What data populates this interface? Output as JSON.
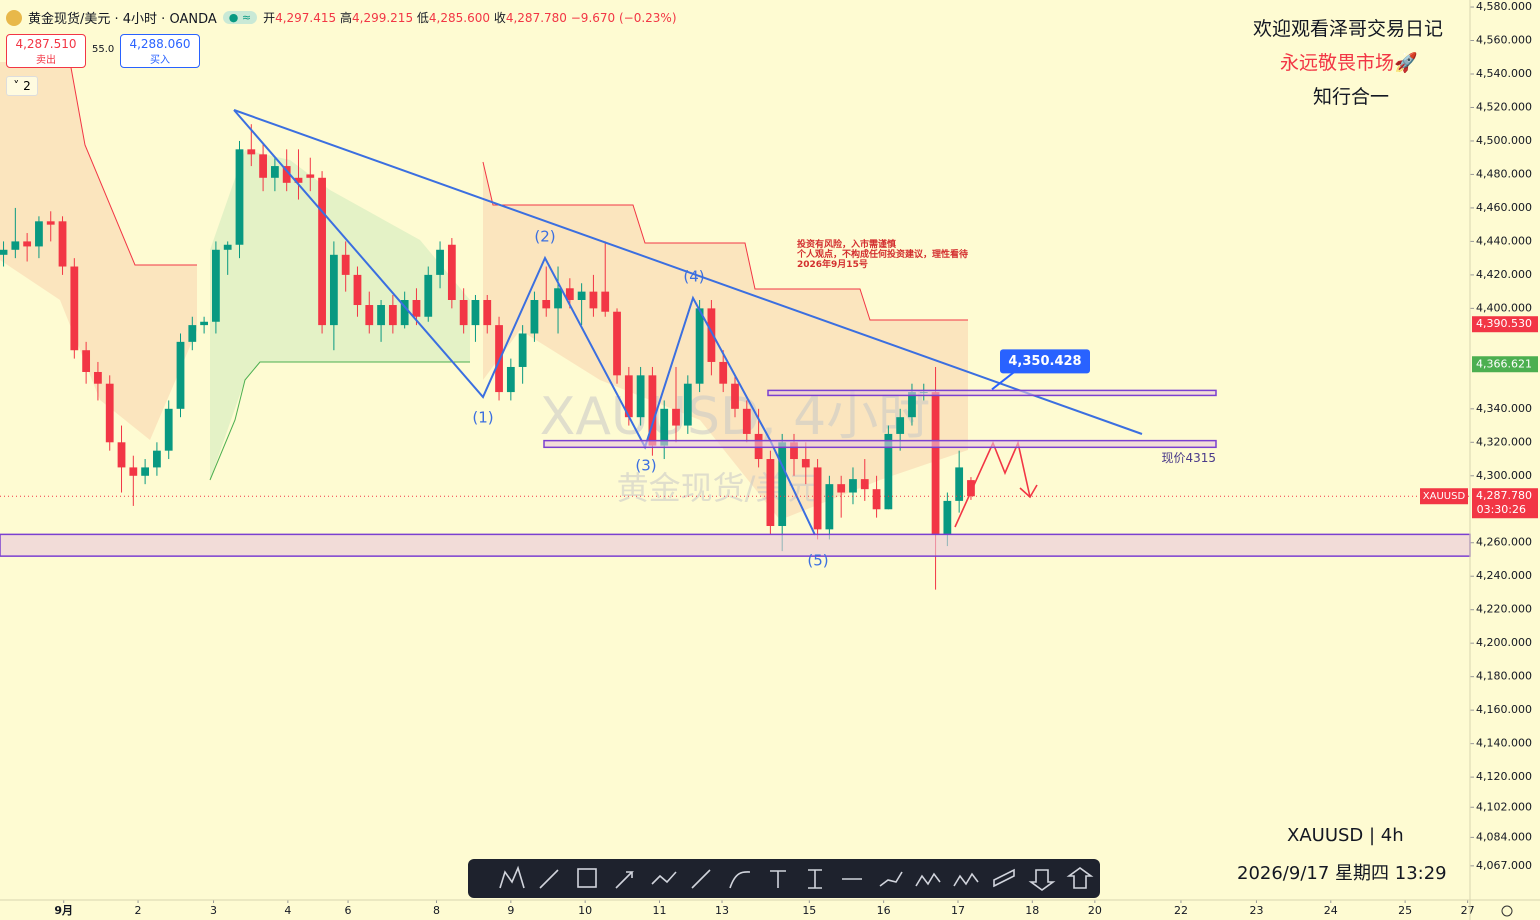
{
  "header": {
    "symbol": "黄金现货/美元 · 4小时 · OANDA",
    "open_label": "开",
    "open": "4,297.415",
    "high_label": "高",
    "high": "4,299.215",
    "low_label": "低",
    "low": "4,285.600",
    "close_label": "收",
    "close": "4,287.780",
    "change": "−9.670 (−0.23%)"
  },
  "trade": {
    "sell_price": "4,287.510",
    "sell_label": "卖出",
    "spread": "55.0",
    "buy_price": "4,288.060",
    "buy_label": "买入"
  },
  "indicators_count": "2",
  "overlay_text": {
    "line1": "欢迎观看泽哥交易日记",
    "line2": "永远敬畏市场🚀",
    "line3": "知行合一",
    "symbol_tf": "XAUUSD | 4h",
    "datetime": "2026/9/17 星期四 13:29"
  },
  "watermark": {
    "main": "XAUUSD, 4小时",
    "sub": "黄金现货/美元"
  },
  "chart_data": {
    "type": "candlestick",
    "up_color": "#089981",
    "down_color": "#f23645",
    "open": [
      4432,
      4435,
      4440,
      4437,
      4452,
      4452,
      4425,
      4375,
      4362,
      4355,
      4320,
      4305,
      4300,
      4305,
      4315,
      4340,
      4380,
      4390,
      4392,
      4435,
      4438,
      4495,
      4492,
      4478,
      4485,
      4478,
      4480,
      4478,
      4390,
      4432,
      4420,
      4402,
      4390,
      4402,
      4390,
      4405,
      4395,
      4420,
      4438,
      4405,
      4390,
      4405,
      4390,
      4350,
      4365,
      4385,
      4405,
      4400,
      4412,
      4405,
      4410,
      4410,
      4398,
      4360,
      4335,
      4360,
      4318,
      4340,
      4330,
      4355,
      4400,
      4368,
      4355,
      4340,
      4325,
      4310,
      4270,
      4320,
      4310,
      4305,
      4268,
      4295,
      4290,
      4298,
      4292,
      4280,
      4325,
      4335,
      4350,
      4350,
      4265,
      4285,
      4297.415
    ],
    "high": [
      4440,
      4460,
      4445,
      4455,
      4458,
      4455,
      4430,
      4380,
      4368,
      4360,
      4330,
      4312,
      4310,
      4320,
      4345,
      4385,
      4395,
      4395,
      4440,
      4440,
      4500,
      4510,
      4498,
      4490,
      4495,
      4495,
      4490,
      4482,
      4440,
      4440,
      4425,
      4410,
      4405,
      4408,
      4410,
      4412,
      4425,
      4440,
      4442,
      4412,
      4408,
      4408,
      4395,
      4370,
      4390,
      4410,
      4425,
      4425,
      4418,
      4415,
      4420,
      4440,
      4400,
      4365,
      4365,
      4365,
      4345,
      4365,
      4360,
      4405,
      4405,
      4375,
      4360,
      4345,
      4340,
      4315,
      4325,
      4325,
      4320,
      4310,
      4300,
      4300,
      4305,
      4310,
      4300,
      4330,
      4340,
      4355,
      4355,
      4365,
      4290,
      4315,
      4299.215
    ],
    "low": [
      4425,
      4430,
      4428,
      4430,
      4440,
      4420,
      4370,
      4355,
      4345,
      4315,
      4290,
      4282,
      4295,
      4300,
      4310,
      4335,
      4375,
      4385,
      4385,
      4420,
      4430,
      4485,
      4470,
      4470,
      4470,
      4465,
      4470,
      4385,
      4375,
      4410,
      4395,
      4385,
      4380,
      4385,
      4388,
      4390,
      4392,
      4412,
      4400,
      4385,
      4380,
      4385,
      4345,
      4345,
      4355,
      4380,
      4395,
      4385,
      4400,
      4390,
      4395,
      4395,
      4355,
      4330,
      4330,
      4312,
      4310,
      4320,
      4325,
      4350,
      4360,
      4350,
      4335,
      4320,
      4305,
      4265,
      4255,
      4300,
      4295,
      4262,
      4262,
      4275,
      4283,
      4285,
      4275,
      4280,
      4315,
      4330,
      4345,
      4232,
      4258,
      4278,
      4285.6
    ],
    "close": [
      4435,
      4440,
      4437,
      4452,
      4450,
      4425,
      4375,
      4362,
      4355,
      4320,
      4305,
      4300,
      4305,
      4315,
      4340,
      4380,
      4390,
      4392,
      4435,
      4438,
      4495,
      4492,
      4478,
      4485,
      4475,
      4475,
      4478,
      4390,
      4432,
      4420,
      4402,
      4390,
      4402,
      4390,
      4405,
      4395,
      4420,
      4435,
      4405,
      4390,
      4405,
      4390,
      4350,
      4365,
      4385,
      4405,
      4400,
      4412,
      4405,
      4410,
      4400,
      4398,
      4360,
      4335,
      4360,
      4318,
      4340,
      4330,
      4355,
      4400,
      4368,
      4355,
      4340,
      4325,
      4310,
      4270,
      4320,
      4310,
      4305,
      4268,
      4295,
      4290,
      4298,
      4292,
      4280,
      4325,
      4335,
      4350,
      4350,
      4265,
      4285,
      4305,
      4287.78
    ],
    "xlim": [
      -0.3,
      124.3
    ],
    "ylim": [
      4046.6,
      4584.2
    ],
    "xticks": [
      {
        "value": 5.1,
        "label": "9月"
      },
      {
        "value": 11.4,
        "label": "2"
      },
      {
        "value": 17.8,
        "label": "3"
      },
      {
        "value": 24.1,
        "label": "4"
      },
      {
        "value": 29.2,
        "label": "6"
      },
      {
        "value": 36.7,
        "label": "8"
      },
      {
        "value": 43,
        "label": "9"
      },
      {
        "value": 49.3,
        "label": "10"
      },
      {
        "value": 55.6,
        "label": "11"
      },
      {
        "value": 60.9,
        "label": "13"
      },
      {
        "value": 68.3,
        "label": "15"
      },
      {
        "value": 74.6,
        "label": "16"
      },
      {
        "value": 80.9,
        "label": "17"
      },
      {
        "value": 87.2,
        "label": "18"
      },
      {
        "value": 92.5,
        "label": "20"
      },
      {
        "value": 99.8,
        "label": "22"
      },
      {
        "value": 106.2,
        "label": "23"
      },
      {
        "value": 112.5,
        "label": "24"
      },
      {
        "value": 118.8,
        "label": "25"
      },
      {
        "value": 124.1,
        "label": "27"
      }
    ],
    "yticks": [
      {
        "value": 4580,
        "label": "4,580.000"
      },
      {
        "value": 4560,
        "label": "4,560.000"
      },
      {
        "value": 4540,
        "label": "4,540.000"
      },
      {
        "value": 4520,
        "label": "4,520.000"
      },
      {
        "value": 4500,
        "label": "4,500.000"
      },
      {
        "value": 4480,
        "label": "4,480.000"
      },
      {
        "value": 4460,
        "label": "4,460.000"
      },
      {
        "value": 4440,
        "label": "4,440.000"
      },
      {
        "value": 4420,
        "label": "4,420.000"
      },
      {
        "value": 4400,
        "label": "4,400.000"
      },
      {
        "value": 4340,
        "label": "4,340.000"
      },
      {
        "value": 4320,
        "label": "4,320.000"
      },
      {
        "value": 4300,
        "label": "4,300.000"
      },
      {
        "value": 4260,
        "label": "4,260.000"
      },
      {
        "value": 4240,
        "label": "4,240.000"
      },
      {
        "value": 4220,
        "label": "4,220.000"
      },
      {
        "value": 4200,
        "label": "4,200.000"
      },
      {
        "value": 4180,
        "label": "4,180.000"
      },
      {
        "value": 4160,
        "label": "4,160.000"
      },
      {
        "value": 4140,
        "label": "4,140.000"
      },
      {
        "value": 4120,
        "label": "4,120.000"
      },
      {
        "value": 4102,
        "label": "4,102.000"
      },
      {
        "value": 4084,
        "label": "4,084.000"
      },
      {
        "value": 4067,
        "label": "4,067.000"
      }
    ],
    "zones": [
      {
        "low": 4348,
        "high": 4351
      },
      {
        "low": 4317,
        "high": 4321
      },
      {
        "low": 4252,
        "high": 4265
      }
    ],
    "zone_label": "现价4315",
    "price_markers": [
      {
        "value": 4390.53,
        "label": "4,390.530",
        "color": "#f23645"
      },
      {
        "value": 4366.621,
        "label": "4,366.621",
        "color": "#4caf50"
      },
      {
        "value": 4287.78,
        "label": "4,287.780",
        "name": "XAUUSD",
        "countdown": "03:30:26",
        "color": "#f23645"
      }
    ],
    "callout": {
      "value": 4350.428,
      "label": "4,350.428"
    },
    "wave_labels": [
      "(1)",
      "(2)",
      "(3)",
      "(4)",
      "(5)"
    ],
    "note": [
      "投资有风险，入市需谨慎",
      "个人观点，不构成任何投资建议，理性看待",
      "2026年9月15号"
    ]
  }
}
